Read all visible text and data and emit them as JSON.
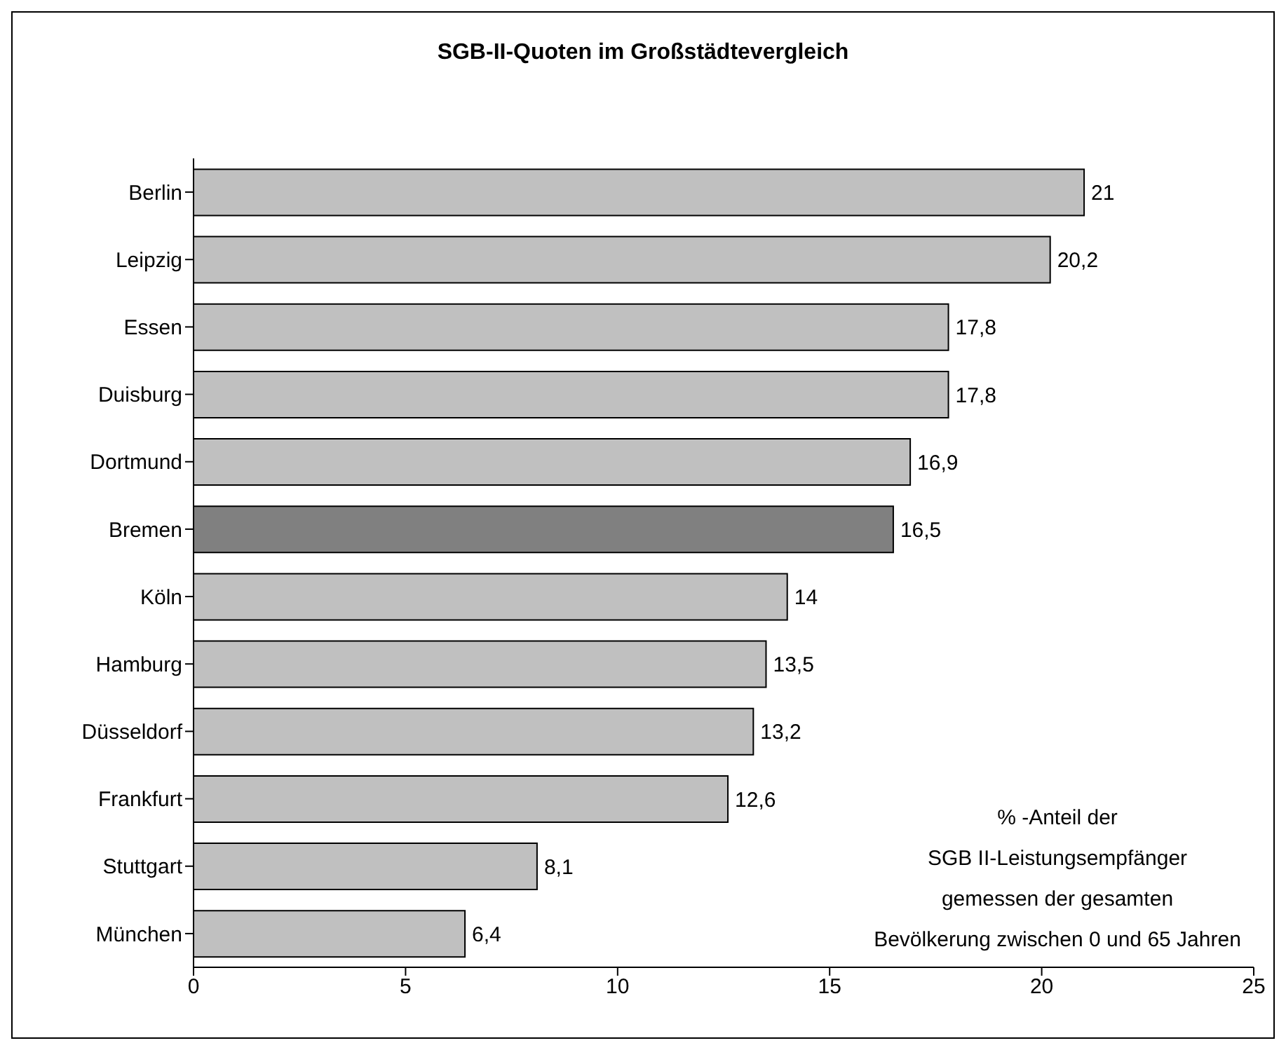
{
  "chart_data": {
    "type": "bar",
    "orientation": "horizontal",
    "title": "SGB-II-Quoten im Großstädtevergleich",
    "categories": [
      "Berlin",
      "Leipzig",
      "Essen",
      "Duisburg",
      "Dortmund",
      "Bremen",
      "Köln",
      "Hamburg",
      "Düsseldorf",
      "Frankfurt",
      "Stuttgart",
      "München"
    ],
    "values": [
      21,
      20.2,
      17.8,
      17.8,
      16.9,
      16.5,
      14,
      13.5,
      13.2,
      12.6,
      8.1,
      6.4
    ],
    "value_labels": [
      "21",
      "20,2",
      "17,8",
      "17,8",
      "16,9",
      "16,5",
      "14",
      "13,5",
      "13,2",
      "12,6",
      "8,1",
      "6,4"
    ],
    "colors": [
      "#c0c0c0",
      "#c0c0c0",
      "#c0c0c0",
      "#c0c0c0",
      "#c0c0c0",
      "#808080",
      "#c0c0c0",
      "#c0c0c0",
      "#c0c0c0",
      "#c0c0c0",
      "#c0c0c0",
      "#c0c0c0"
    ],
    "xlim": [
      0,
      25
    ],
    "xticks": [
      0,
      5,
      10,
      15,
      20,
      25
    ],
    "grid": false,
    "legend": false,
    "annotations": [
      "% -Anteil der\nSGB II-Leistungsempfänger\ngemessen der gesamten\nBevölkerung zwischen 0 und 65 Jahren"
    ]
  }
}
